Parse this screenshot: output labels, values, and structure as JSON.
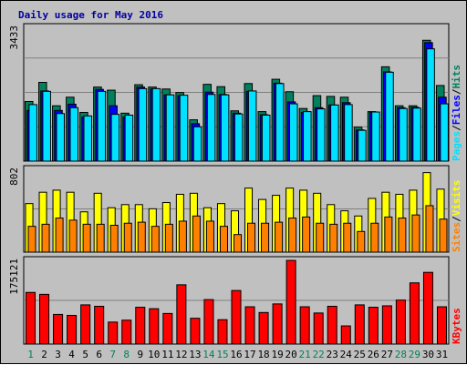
{
  "title": "Daily usage for May 2016",
  "colors": {
    "background": "#c0c0c0",
    "plot_background": "#c0c0c0",
    "grid": "#808080",
    "title": "#0000a0",
    "hits": "#00805c",
    "files": "#0000ff",
    "pages": "#00e0ff",
    "visits": "#ffff00",
    "sites": "#ff8000",
    "kbytes": "#ff0000",
    "weekday_label": "#000000",
    "weekend_label": "#00805c"
  },
  "chart_data": [
    {
      "type": "bar",
      "panel": "pages-files-hits",
      "categories": [
        "1",
        "2",
        "3",
        "4",
        "5",
        "6",
        "7",
        "8",
        "9",
        "10",
        "11",
        "12",
        "13",
        "14",
        "15",
        "16",
        "17",
        "18",
        "19",
        "20",
        "21",
        "22",
        "23",
        "24",
        "25",
        "26",
        "27",
        "28",
        "29",
        "30",
        "31"
      ],
      "ymax_label": "3433",
      "ylim": [
        0,
        3433
      ],
      "grid": true,
      "weekend_days": [
        "1",
        "7",
        "8",
        "14",
        "15",
        "21",
        "22",
        "28",
        "29"
      ],
      "legend": [
        {
          "key": "pages",
          "label": "Pages"
        },
        {
          "sep": "/"
        },
        {
          "key": "files",
          "label": "Files"
        },
        {
          "sep": "/"
        },
        {
          "key": "hits",
          "label": "Hits"
        }
      ],
      "series": [
        {
          "name": "Hits",
          "key": "hits",
          "values": [
            1530,
            2020,
            1420,
            1640,
            1250,
            1900,
            1820,
            1230,
            1960,
            1900,
            1850,
            1760,
            1060,
            1970,
            1910,
            1290,
            1990,
            1270,
            2100,
            1780,
            1350,
            1680,
            1660,
            1640,
            870,
            1270,
            2420,
            1420,
            1420,
            3100,
            1940
          ]
        },
        {
          "name": "Files",
          "key": "files",
          "values": [
            1300,
            1800,
            1300,
            1460,
            1130,
            1840,
            1420,
            1130,
            1900,
            1850,
            1700,
            1680,
            960,
            1770,
            1710,
            1230,
            1790,
            1190,
            2000,
            1520,
            1250,
            1370,
            1440,
            1500,
            800,
            1250,
            2290,
            1370,
            1380,
            3040,
            1640
          ]
        },
        {
          "name": "Pages",
          "key": "pages",
          "values": [
            1450,
            1790,
            1220,
            1370,
            1160,
            1790,
            1200,
            1180,
            1860,
            1860,
            1700,
            1690,
            880,
            1710,
            1700,
            1210,
            1800,
            1180,
            1990,
            1470,
            1270,
            1340,
            1440,
            1450,
            790,
            1260,
            2280,
            1350,
            1360,
            2880,
            1470
          ]
        }
      ]
    },
    {
      "type": "bar",
      "panel": "sites-visits",
      "categories": [
        "1",
        "2",
        "3",
        "4",
        "5",
        "6",
        "7",
        "8",
        "9",
        "10",
        "11",
        "12",
        "13",
        "14",
        "15",
        "16",
        "17",
        "18",
        "19",
        "20",
        "21",
        "22",
        "23",
        "24",
        "25",
        "26",
        "27",
        "28",
        "29",
        "30",
        "31"
      ],
      "ymax_label": "802",
      "ylim": [
        0,
        802
      ],
      "grid": true,
      "legend": [
        {
          "key": "sites",
          "label": "Sites"
        },
        {
          "sep": "/"
        },
        {
          "key": "visits",
          "label": "Visits"
        }
      ],
      "series": [
        {
          "name": "Visits",
          "key": "visits",
          "values": [
            470,
            580,
            600,
            580,
            390,
            570,
            430,
            460,
            460,
            420,
            480,
            560,
            570,
            430,
            470,
            400,
            620,
            510,
            550,
            620,
            600,
            570,
            460,
            400,
            350,
            520,
            580,
            560,
            600,
            770,
            610
          ]
        },
        {
          "name": "Sites",
          "key": "sites",
          "values": [
            250,
            270,
            330,
            310,
            270,
            270,
            260,
            280,
            290,
            250,
            270,
            300,
            350,
            300,
            250,
            170,
            280,
            280,
            290,
            330,
            340,
            280,
            270,
            280,
            200,
            280,
            340,
            330,
            360,
            450,
            320
          ]
        }
      ]
    },
    {
      "type": "bar",
      "panel": "kbytes",
      "categories": [
        "1",
        "2",
        "3",
        "4",
        "5",
        "6",
        "7",
        "8",
        "9",
        "10",
        "11",
        "12",
        "13",
        "14",
        "15",
        "16",
        "17",
        "18",
        "19",
        "20",
        "21",
        "22",
        "23",
        "24",
        "25",
        "26",
        "27",
        "28",
        "29",
        "30",
        "31"
      ],
      "ymax_label": "175121",
      "ylim": [
        0,
        175121
      ],
      "grid": true,
      "legend": [
        {
          "key": "kbytes",
          "label": "KBytes"
        }
      ],
      "series": [
        {
          "name": "KBytes",
          "key": "kbytes",
          "values": [
            108000,
            104000,
            62000,
            60000,
            82000,
            79000,
            46000,
            50000,
            77000,
            74000,
            64000,
            124000,
            54000,
            93000,
            51000,
            112000,
            78000,
            66000,
            84000,
            175000,
            78000,
            65000,
            79000,
            38000,
            82000,
            77000,
            80000,
            92000,
            128000,
            150000,
            78000
          ]
        }
      ]
    }
  ]
}
